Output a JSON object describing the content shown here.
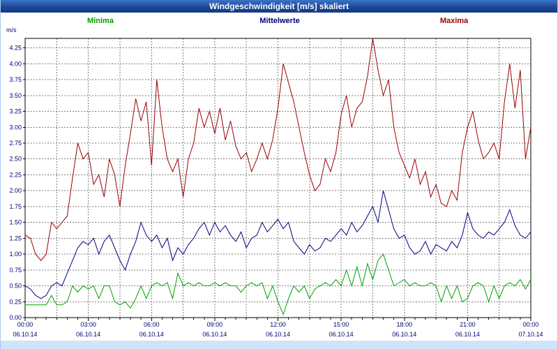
{
  "window": {
    "title": "Windgeschwindigkeit [m/s] skaliert"
  },
  "legend": {
    "minima_label": "Minima",
    "mittelwerte_label": "Mittelwerte",
    "maxima_label": "Maxima"
  },
  "axis": {
    "unit_label": "m/s"
  },
  "colors": {
    "titlebar": "#1c4898",
    "minima": "#00a000",
    "mittelwerte": "#000080",
    "maxima": "#990000",
    "grid": "#7d7d7d",
    "tick_text": "#00006e",
    "bottom_strip": "#cfe4f8"
  },
  "chart_data": {
    "type": "line",
    "title": "Windgeschwindigkeit [m/s] skaliert",
    "ylabel": "m/s",
    "ylim": [
      0,
      4.4
    ],
    "y_tick_step": 0.25,
    "y_tick_labels": [
      "0.00",
      "0.25",
      "0.50",
      "0.75",
      "1.00",
      "1.25",
      "1.50",
      "1.75",
      "2.00",
      "2.25",
      "2.50",
      "2.75",
      "3.00",
      "3.25",
      "3.50",
      "3.75",
      "4.00",
      "4.25"
    ],
    "x_tick_labels": [
      "00:00",
      "03:00",
      "06:00",
      "09:00",
      "12:00",
      "15:00",
      "18:00",
      "21:00",
      "00:00"
    ],
    "x_tick_dates": [
      "06.10.14",
      "06.10.14",
      "06.10.14",
      "06.10.14",
      "06.10.14",
      "06.10.14",
      "06.10.14",
      "06.10.14",
      "07.10.14"
    ],
    "x_minutes_step": 15,
    "grid": true,
    "legend_position": "top",
    "series": [
      {
        "name": "Minima",
        "color": "#00a000",
        "values": [
          0.2,
          0.2,
          0.2,
          0.2,
          0.2,
          0.35,
          0.2,
          0.2,
          0.25,
          0.5,
          0.4,
          0.5,
          0.45,
          0.5,
          0.3,
          0.5,
          0.5,
          0.25,
          0.2,
          0.25,
          0.15,
          0.3,
          0.5,
          0.3,
          0.5,
          0.55,
          0.5,
          0.55,
          0.3,
          0.7,
          0.5,
          0.55,
          0.5,
          0.55,
          0.5,
          0.5,
          0.55,
          0.5,
          0.55,
          0.5,
          0.5,
          0.4,
          0.5,
          0.55,
          0.5,
          0.55,
          0.3,
          0.5,
          0.25,
          0.05,
          0.3,
          0.5,
          0.4,
          0.5,
          0.3,
          0.45,
          0.5,
          0.55,
          0.5,
          0.6,
          0.5,
          0.75,
          0.5,
          0.8,
          0.5,
          0.85,
          0.6,
          0.9,
          1.0,
          0.75,
          0.5,
          0.55,
          0.6,
          0.5,
          0.55,
          0.5,
          0.5,
          0.55,
          0.5,
          0.25,
          0.5,
          0.3,
          0.5,
          0.25,
          0.3,
          0.5,
          0.55,
          0.5,
          0.25,
          0.5,
          0.3,
          0.5,
          0.55,
          0.5,
          0.6,
          0.45,
          0.6
        ]
      },
      {
        "name": "Mittelwerte",
        "color": "#000080",
        "values": [
          0.5,
          0.45,
          0.35,
          0.3,
          0.35,
          0.5,
          0.55,
          0.5,
          0.7,
          0.9,
          1.1,
          1.2,
          1.15,
          1.25,
          1.0,
          1.2,
          1.3,
          1.1,
          0.9,
          0.75,
          1.0,
          1.2,
          1.5,
          1.3,
          1.2,
          1.3,
          1.1,
          1.25,
          0.9,
          1.1,
          1.0,
          1.15,
          1.25,
          1.4,
          1.5,
          1.3,
          1.5,
          1.35,
          1.45,
          1.3,
          1.2,
          1.35,
          1.1,
          1.25,
          1.3,
          1.5,
          1.35,
          1.45,
          1.55,
          1.4,
          1.5,
          1.2,
          1.1,
          1.0,
          1.15,
          1.05,
          1.1,
          1.25,
          1.2,
          1.3,
          1.4,
          1.3,
          1.5,
          1.35,
          1.45,
          1.6,
          1.75,
          1.5,
          2.0,
          1.7,
          1.4,
          1.25,
          1.3,
          1.1,
          1.0,
          1.05,
          1.2,
          1.0,
          1.15,
          1.1,
          1.05,
          1.2,
          1.1,
          1.3,
          1.65,
          1.4,
          1.3,
          1.25,
          1.35,
          1.3,
          1.4,
          1.5,
          1.7,
          1.45,
          1.3,
          1.25,
          1.35
        ]
      },
      {
        "name": "Maxima",
        "color": "#990000",
        "values": [
          1.3,
          1.25,
          1.0,
          0.9,
          1.0,
          1.5,
          1.4,
          1.5,
          1.6,
          2.2,
          2.75,
          2.5,
          2.6,
          2.1,
          2.25,
          1.9,
          2.5,
          2.25,
          1.75,
          2.4,
          2.9,
          3.45,
          3.1,
          3.4,
          2.4,
          3.75,
          3.0,
          2.5,
          2.3,
          2.5,
          1.9,
          2.5,
          2.75,
          3.3,
          3.0,
          3.25,
          2.9,
          3.3,
          2.8,
          3.1,
          2.7,
          2.5,
          2.6,
          2.3,
          2.5,
          2.75,
          2.5,
          2.8,
          3.3,
          4.0,
          3.7,
          3.4,
          3.0,
          2.6,
          2.25,
          2.0,
          2.1,
          2.5,
          2.3,
          2.6,
          3.2,
          3.5,
          3.0,
          3.3,
          3.4,
          3.8,
          4.4,
          3.9,
          3.5,
          3.75,
          3.0,
          2.6,
          2.4,
          2.2,
          2.5,
          2.1,
          2.3,
          1.9,
          2.1,
          1.8,
          1.75,
          2.0,
          1.85,
          2.6,
          3.0,
          3.25,
          2.8,
          2.5,
          2.6,
          2.75,
          2.5,
          3.4,
          4.0,
          3.3,
          3.9,
          2.5,
          3.0
        ]
      }
    ]
  }
}
